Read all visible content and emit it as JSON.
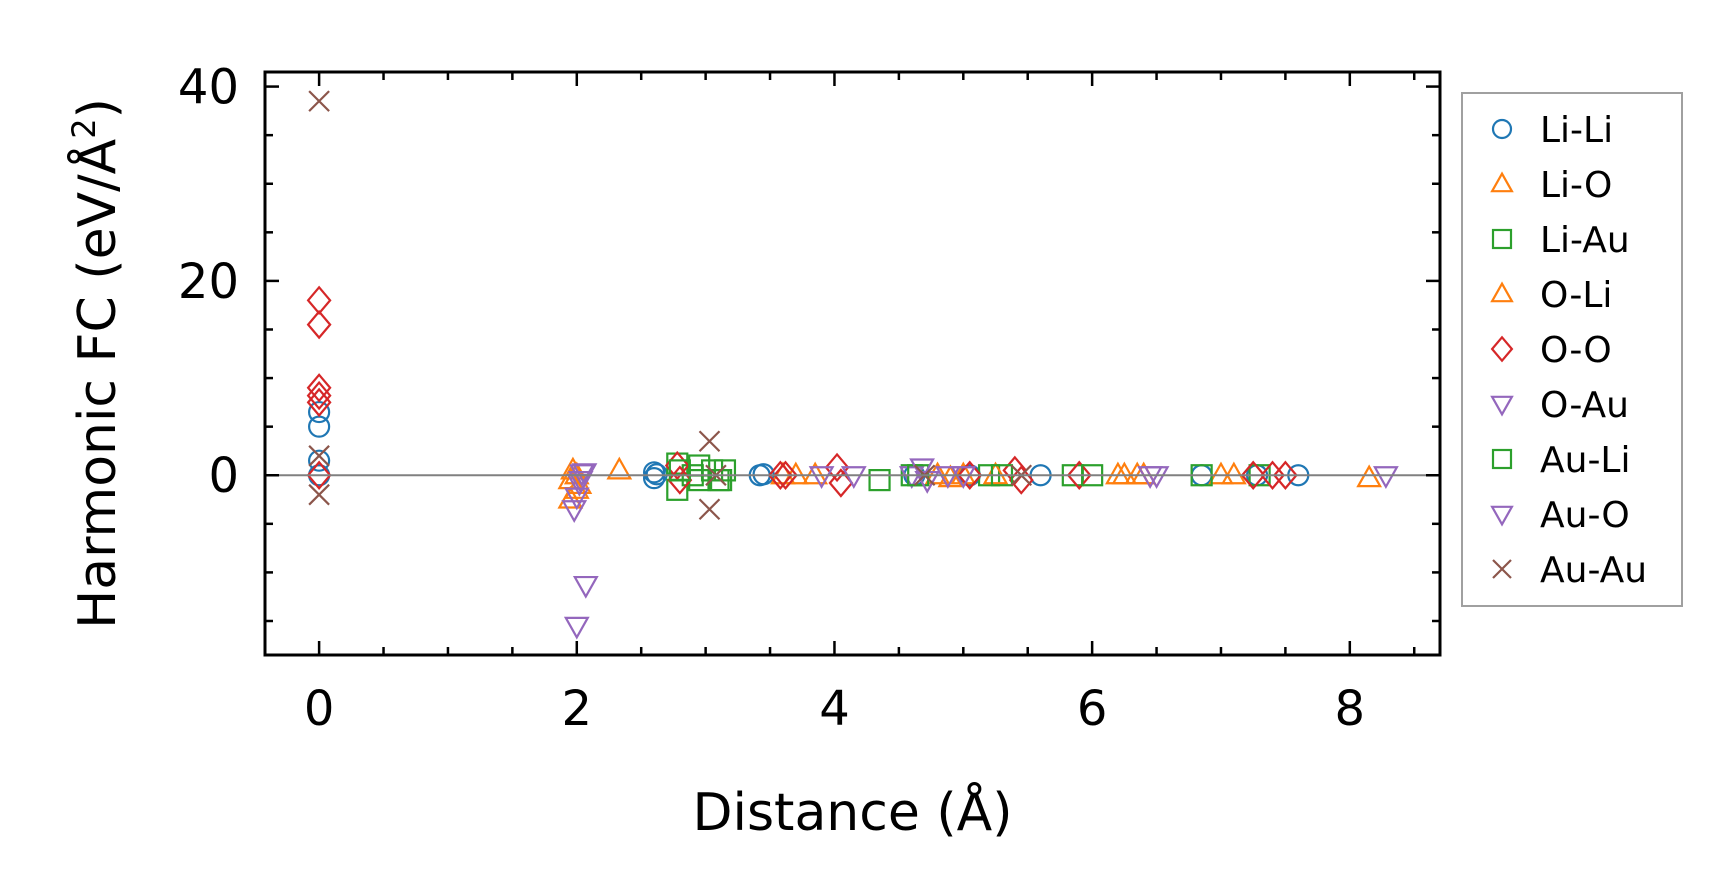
{
  "chart_data": {
    "type": "scatter",
    "xlabel": "Distance (Å)",
    "ylabel": "Harmonic FC (eV/Å²)",
    "ylabel_parts": {
      "main": "Harmonic FC (eV/Å",
      "sup": "2",
      "close": ")"
    },
    "xlim": [
      -0.42,
      8.7
    ],
    "ylim": [
      -18.5,
      41.5
    ],
    "xticks": [
      0,
      2,
      4,
      6,
      8
    ],
    "xtick_labels": [
      "0",
      "2",
      "4",
      "6",
      "8"
    ],
    "yticks": [
      0,
      20,
      40
    ],
    "ytick_labels": [
      "0",
      "20",
      "40"
    ],
    "zero_line": true,
    "grid": false,
    "legend_position": "outside-right",
    "series": [
      {
        "name": "Li-Li",
        "marker": "circle",
        "color": "#1f77b4",
        "points": [
          [
            0,
            0
          ],
          [
            0,
            1.5
          ],
          [
            0,
            5
          ],
          [
            0,
            6.5
          ],
          [
            2.6,
            0.3
          ],
          [
            2.6,
            -0.3
          ],
          [
            2.62,
            0.1
          ],
          [
            3.42,
            0
          ],
          [
            3.45,
            0.1
          ],
          [
            4.62,
            0
          ],
          [
            5.05,
            0
          ],
          [
            5.6,
            0
          ],
          [
            6.85,
            0
          ],
          [
            7.28,
            0
          ],
          [
            7.6,
            0
          ]
        ]
      },
      {
        "name": "Li-O",
        "marker": "triangle-up",
        "color": "#ff7f0e",
        "points": [
          [
            1.95,
            -2.5
          ],
          [
            1.95,
            -0.5
          ],
          [
            1.97,
            0.5
          ],
          [
            2.0,
            -1.5
          ],
          [
            2.33,
            0.5
          ],
          [
            3.6,
            0
          ],
          [
            3.85,
            0
          ],
          [
            4.9,
            -0.3
          ],
          [
            5.0,
            0
          ],
          [
            6.2,
            0
          ],
          [
            6.35,
            0
          ],
          [
            7.0,
            0
          ],
          [
            8.15,
            -0.3
          ]
        ]
      },
      {
        "name": "Li-Au",
        "marker": "square",
        "color": "#2ca02c",
        "points": [
          [
            2.78,
            -1.5
          ],
          [
            2.78,
            1.2
          ],
          [
            2.9,
            0
          ],
          [
            2.95,
            -0.5
          ],
          [
            3.05,
            0.5
          ],
          [
            3.12,
            -0.5
          ],
          [
            3.15,
            0.5
          ],
          [
            4.35,
            -0.5
          ],
          [
            4.6,
            0
          ],
          [
            5.2,
            0
          ],
          [
            5.85,
            0
          ],
          [
            6.85,
            0
          ],
          [
            7.3,
            0
          ]
        ]
      },
      {
        "name": "O-Li",
        "marker": "triangle-up",
        "color": "#ff7f0e",
        "points": [
          [
            2.0,
            0
          ],
          [
            2.02,
            -1.0
          ],
          [
            3.7,
            0
          ],
          [
            4.8,
            0
          ],
          [
            5.25,
            0
          ],
          [
            6.25,
            0
          ],
          [
            6.4,
            0
          ],
          [
            7.1,
            0
          ]
        ]
      },
      {
        "name": "O-O",
        "marker": "diamond",
        "color": "#d62728",
        "points": [
          [
            0,
            18
          ],
          [
            0,
            15.5
          ],
          [
            0,
            9
          ],
          [
            0,
            8.2
          ],
          [
            0,
            7.5
          ],
          [
            0,
            0
          ],
          [
            2.78,
            1
          ],
          [
            2.8,
            -0.5
          ],
          [
            3.58,
            0
          ],
          [
            3.62,
            0
          ],
          [
            4.02,
            0.8
          ],
          [
            4.05,
            -0.8
          ],
          [
            5.05,
            0
          ],
          [
            5.4,
            0.5
          ],
          [
            5.45,
            -0.5
          ],
          [
            5.9,
            0
          ],
          [
            7.25,
            0
          ],
          [
            7.4,
            0
          ],
          [
            7.5,
            0
          ]
        ]
      },
      {
        "name": "O-Au",
        "marker": "triangle-down",
        "color": "#9467bd",
        "points": [
          [
            1.98,
            -3.5
          ],
          [
            2.0,
            -2.2
          ],
          [
            2.02,
            -0.8
          ],
          [
            2.04,
            0.2
          ],
          [
            2.06,
            0.3
          ],
          [
            3.9,
            0
          ],
          [
            4.15,
            0
          ],
          [
            4.6,
            0
          ],
          [
            4.88,
            0
          ],
          [
            6.45,
            0
          ]
        ]
      },
      {
        "name": "Au-Li",
        "marker": "square",
        "color": "#2ca02c",
        "points": [
          [
            2.8,
            0.5
          ],
          [
            2.95,
            1
          ],
          [
            3.1,
            -0.5
          ],
          [
            4.65,
            0
          ],
          [
            5.3,
            0
          ],
          [
            6.0,
            0
          ]
        ]
      },
      {
        "name": "Au-O",
        "marker": "triangle-down",
        "color": "#9467bd",
        "points": [
          [
            2.0,
            -15.5
          ],
          [
            2.07,
            -11.3
          ],
          [
            2.03,
            -0.5
          ],
          [
            4.68,
            0.8
          ],
          [
            4.72,
            -0.5
          ],
          [
            5.0,
            0
          ],
          [
            6.5,
            0
          ],
          [
            8.28,
            0
          ]
        ]
      },
      {
        "name": "Au-Au",
        "marker": "x",
        "color": "#8c564b",
        "points": [
          [
            0,
            38.5
          ],
          [
            0,
            2
          ],
          [
            0,
            -2
          ],
          [
            3.03,
            3.5
          ],
          [
            3.03,
            -3.5
          ],
          [
            3.08,
            0
          ],
          [
            4.7,
            0
          ],
          [
            5.45,
            0
          ]
        ]
      }
    ]
  }
}
